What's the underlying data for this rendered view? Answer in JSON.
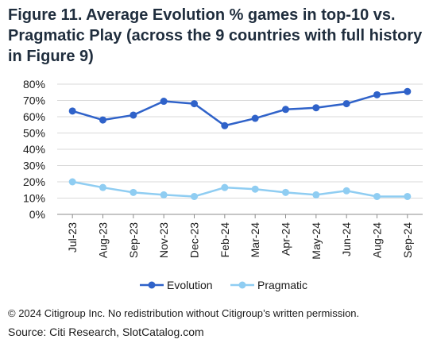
{
  "title": "Figure 11. Average Evolution % games in top-10 vs. Pragmatic Play (across the 9 countries with full history in Figure 9)",
  "copyright": "© 2024 Citigroup Inc. No redistribution without Citigroup’s written permission.",
  "source": "Source: Citi Research, SlotCatalog.com",
  "chart_data": {
    "type": "line",
    "categories": [
      "Jul-23",
      "Aug-23",
      "Sep-23",
      "Nov-23",
      "Dec-23",
      "Feb-24",
      "Mar-24",
      "Apr-24",
      "May-24",
      "Jun-24",
      "Aug-24",
      "Sep-24"
    ],
    "series": [
      {
        "name": "Evolution",
        "color": "#2f62c9",
        "values": [
          63.5,
          58,
          61,
          69.5,
          68,
          54.5,
          59,
          64.5,
          65.5,
          68,
          73.5,
          75.5
        ]
      },
      {
        "name": "Pragmatic",
        "color": "#8fcdf2",
        "values": [
          20,
          16.5,
          13.5,
          12,
          11,
          16.5,
          15.5,
          13.5,
          12,
          14.5,
          11,
          11
        ]
      }
    ],
    "ylim": [
      0,
      80
    ],
    "yticks": [
      0,
      10,
      20,
      30,
      40,
      50,
      60,
      70,
      80
    ],
    "y_tick_suffix": "%",
    "grid": true,
    "legend": "bottom"
  }
}
